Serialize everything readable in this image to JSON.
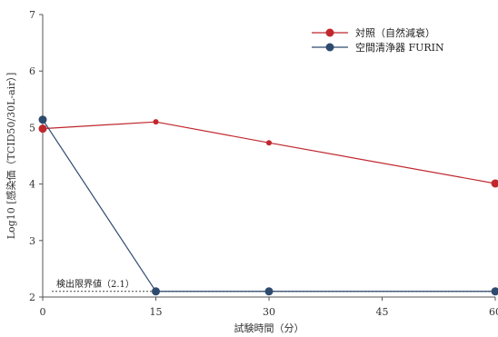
{
  "chart_data": {
    "type": "line",
    "title": "",
    "xlabel": "試験時間（分）",
    "ylabel": "Log10 [感染価（TCID50/30L-air）]",
    "xlim": [
      0,
      60
    ],
    "ylim": [
      2,
      7
    ],
    "x_ticks": [
      0,
      15,
      30,
      45,
      60
    ],
    "x_tick_labels": [
      "0",
      "15",
      "30",
      "45",
      "60"
    ],
    "y_ticks": [
      2,
      3,
      4,
      5,
      6,
      7
    ],
    "y_tick_labels": [
      "2",
      "3",
      "4",
      "5",
      "6",
      "7"
    ],
    "legend_position": "top-right",
    "grid": false,
    "series": [
      {
        "name": "対照（自然減衰）",
        "color": "#c0272d",
        "points": [
          {
            "x": 0,
            "y": 4.98
          },
          {
            "x": 15,
            "y": 5.1
          },
          {
            "x": 30,
            "y": 4.73
          },
          {
            "x": 60,
            "y": 4.01
          }
        ]
      },
      {
        "name": "空間清浄器 FURIN",
        "color": "#2e4a6e",
        "points": [
          {
            "x": 0,
            "y": 5.14
          },
          {
            "x": 15,
            "y": 2.1
          },
          {
            "x": 30,
            "y": 2.1
          },
          {
            "x": 60,
            "y": 2.1
          }
        ]
      }
    ],
    "annotations": [
      {
        "text": "検出限界値（2.1）",
        "value": 2.1
      }
    ]
  }
}
